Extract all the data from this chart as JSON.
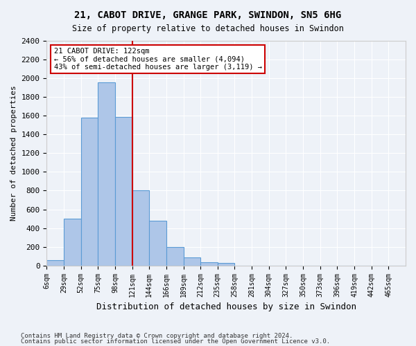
{
  "title1": "21, CABOT DRIVE, GRANGE PARK, SWINDON, SN5 6HG",
  "title2": "Size of property relative to detached houses in Swindon",
  "xlabel": "Distribution of detached houses by size in Swindon",
  "ylabel": "Number of detached properties",
  "bin_labels": [
    "6sqm",
    "29sqm",
    "52sqm",
    "75sqm",
    "98sqm",
    "121sqm",
    "144sqm",
    "166sqm",
    "189sqm",
    "212sqm",
    "235sqm",
    "258sqm",
    "281sqm",
    "304sqm",
    "327sqm",
    "350sqm",
    "373sqm",
    "396sqm",
    "419sqm",
    "442sqm",
    "465sqm"
  ],
  "bar_heights": [
    60,
    500,
    1580,
    1960,
    1590,
    800,
    480,
    195,
    90,
    35,
    25,
    0,
    0,
    0,
    0,
    0,
    0,
    0,
    0,
    0,
    0
  ],
  "bar_color": "#aec6e8",
  "bar_edge_color": "#5b9bd5",
  "vline_x_index": 5,
  "vline_color": "#cc0000",
  "annotation_text": "21 CABOT DRIVE: 122sqm\n← 56% of detached houses are smaller (4,094)\n43% of semi-detached houses are larger (3,119) →",
  "annotation_box_color": "#ffffff",
  "annotation_box_edge_color": "#cc0000",
  "ylim": [
    0,
    2400
  ],
  "yticks": [
    0,
    200,
    400,
    600,
    800,
    1000,
    1200,
    1400,
    1600,
    1800,
    2000,
    2200,
    2400
  ],
  "footnote1": "Contains HM Land Registry data © Crown copyright and database right 2024.",
  "footnote2": "Contains public sector information licensed under the Open Government Licence v3.0.",
  "background_color": "#eef2f8",
  "grid_color": "#ffffff"
}
